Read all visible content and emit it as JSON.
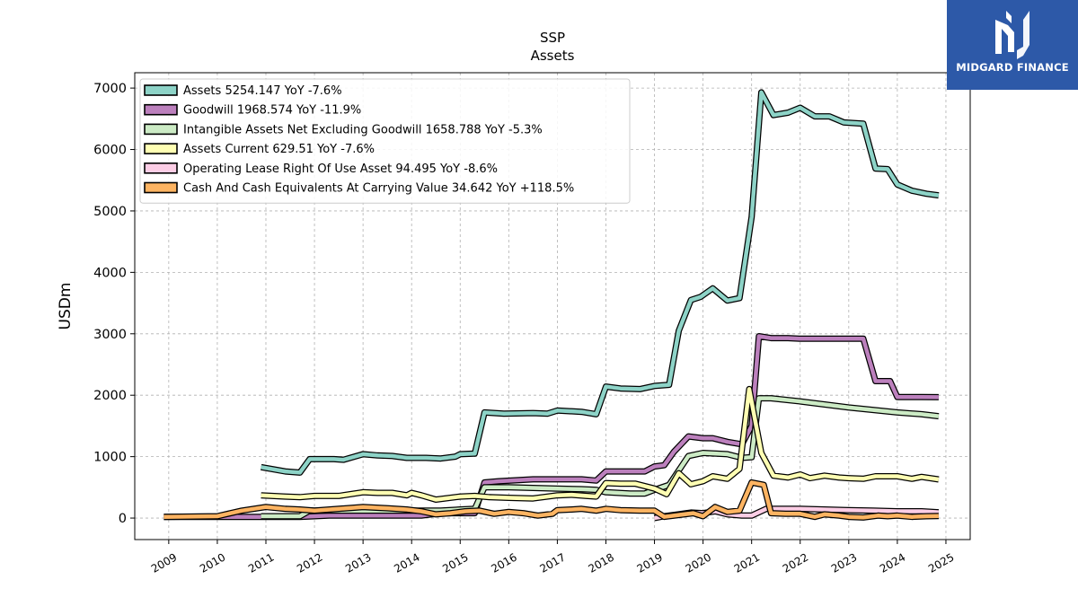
{
  "brand": {
    "name": "MIDGARD FINANCE",
    "logo_icon": "midgard-m-icon",
    "bg_color": "#2d59a8"
  },
  "chart_data": {
    "type": "line",
    "title": "SSP",
    "subtitle": "Assets",
    "xlabel": "",
    "ylabel": "USDm",
    "xlim": [
      2008.3,
      2025.5
    ],
    "ylim": [
      -350,
      7250
    ],
    "x_ticks": [
      "2009",
      "2010",
      "2011",
      "2012",
      "2013",
      "2014",
      "2015",
      "2016",
      "2017",
      "2018",
      "2019",
      "2020",
      "2021",
      "2022",
      "2023",
      "2024",
      "2025"
    ],
    "y_ticks": [
      0,
      1000,
      2000,
      3000,
      4000,
      5000,
      6000,
      7000
    ],
    "grid": true,
    "legend_position": "top-left",
    "series": [
      {
        "name": "Assets",
        "legend": "Assets  5254.147 YoY -7.6%",
        "color": "#8dd3c7",
        "points": [
          [
            2010.9,
            830
          ],
          [
            2011.4,
            760
          ],
          [
            2011.7,
            740
          ],
          [
            2011.9,
            960
          ],
          [
            2012.4,
            960
          ],
          [
            2012.6,
            950
          ],
          [
            2013,
            1040
          ],
          [
            2013.3,
            1020
          ],
          [
            2013.6,
            1010
          ],
          [
            2013.9,
            980
          ],
          [
            2014.3,
            980
          ],
          [
            2014.6,
            970
          ],
          [
            2014.9,
            1000
          ],
          [
            2015,
            1040
          ],
          [
            2015.3,
            1050
          ],
          [
            2015.5,
            1720
          ],
          [
            2015.9,
            1700
          ],
          [
            2016.5,
            1710
          ],
          [
            2016.8,
            1700
          ],
          [
            2017,
            1750
          ],
          [
            2017.5,
            1730
          ],
          [
            2017.8,
            1690
          ],
          [
            2018,
            2140
          ],
          [
            2018.3,
            2110
          ],
          [
            2018.7,
            2100
          ],
          [
            2019,
            2150
          ],
          [
            2019.3,
            2170
          ],
          [
            2019.5,
            3050
          ],
          [
            2019.75,
            3550
          ],
          [
            2019.95,
            3600
          ],
          [
            2020.2,
            3740
          ],
          [
            2020.5,
            3540
          ],
          [
            2020.75,
            3580
          ],
          [
            2021,
            4900
          ],
          [
            2021.2,
            6930
          ],
          [
            2021.45,
            6560
          ],
          [
            2021.75,
            6600
          ],
          [
            2022,
            6680
          ],
          [
            2022.3,
            6540
          ],
          [
            2022.6,
            6540
          ],
          [
            2022.9,
            6440
          ],
          [
            2023.3,
            6420
          ],
          [
            2023.55,
            5690
          ],
          [
            2023.8,
            5680
          ],
          [
            2024,
            5430
          ],
          [
            2024.3,
            5330
          ],
          [
            2024.6,
            5280
          ],
          [
            2024.85,
            5254
          ]
        ]
      },
      {
        "name": "Goodwill",
        "legend": "Goodwill  1968.574 YoY -11.9%",
        "color": "#bc80bd",
        "points": [
          [
            2008.9,
            20
          ],
          [
            2010,
            20
          ],
          [
            2011.7,
            20
          ],
          [
            2012.3,
            40
          ],
          [
            2013.5,
            40
          ],
          [
            2014.2,
            40
          ],
          [
            2014.6,
            80
          ],
          [
            2015,
            80
          ],
          [
            2015.3,
            80
          ],
          [
            2015.5,
            580
          ],
          [
            2015.8,
            600
          ],
          [
            2016.5,
            630
          ],
          [
            2017.5,
            630
          ],
          [
            2017.8,
            610
          ],
          [
            2018,
            760
          ],
          [
            2018.5,
            760
          ],
          [
            2018.8,
            760
          ],
          [
            2019,
            840
          ],
          [
            2019.2,
            860
          ],
          [
            2019.4,
            1080
          ],
          [
            2019.7,
            1330
          ],
          [
            2020,
            1300
          ],
          [
            2020.2,
            1300
          ],
          [
            2020.5,
            1240
          ],
          [
            2020.8,
            1200
          ],
          [
            2021,
            1500
          ],
          [
            2021.15,
            2960
          ],
          [
            2021.4,
            2930
          ],
          [
            2021.75,
            2930
          ],
          [
            2022,
            2920
          ],
          [
            2022.5,
            2920
          ],
          [
            2023,
            2920
          ],
          [
            2023.3,
            2920
          ],
          [
            2023.55,
            2230
          ],
          [
            2023.85,
            2230
          ],
          [
            2024,
            1970
          ],
          [
            2024.5,
            1970
          ],
          [
            2024.85,
            1968.574
          ]
        ]
      },
      {
        "name": "Intangible Assets Net Excluding Goodwill",
        "legend": "Intangible Assets Net Excluding Goodwill  1658.788 YoY -5.3%",
        "color": "#ccebc5",
        "points": [
          [
            2010.9,
            30
          ],
          [
            2011.4,
            30
          ],
          [
            2011.7,
            30
          ],
          [
            2011.9,
            120
          ],
          [
            2013,
            120
          ],
          [
            2014,
            120
          ],
          [
            2014.6,
            120
          ],
          [
            2015,
            140
          ],
          [
            2015.3,
            150
          ],
          [
            2015.5,
            500
          ],
          [
            2016,
            500
          ],
          [
            2016.5,
            490
          ],
          [
            2017,
            480
          ],
          [
            2017.5,
            470
          ],
          [
            2017.8,
            460
          ],
          [
            2018,
            420
          ],
          [
            2018.5,
            400
          ],
          [
            2018.8,
            400
          ],
          [
            2019,
            460
          ],
          [
            2019.3,
            540
          ],
          [
            2019.7,
            1010
          ],
          [
            2020,
            1060
          ],
          [
            2020.5,
            1040
          ],
          [
            2020.8,
            980
          ],
          [
            2021,
            990
          ],
          [
            2021.15,
            1950
          ],
          [
            2021.4,
            1950
          ],
          [
            2022,
            1900
          ],
          [
            2022.5,
            1850
          ],
          [
            2023,
            1800
          ],
          [
            2023.5,
            1760
          ],
          [
            2024,
            1720
          ],
          [
            2024.5,
            1690
          ],
          [
            2024.85,
            1658.788
          ]
        ]
      },
      {
        "name": "Assets Current",
        "legend": "Assets Current  629.51 YoY -7.6%",
        "color": "#ffffb3",
        "points": [
          [
            2010.9,
            370
          ],
          [
            2011.4,
            350
          ],
          [
            2011.7,
            340
          ],
          [
            2012,
            360
          ],
          [
            2012.5,
            360
          ],
          [
            2013,
            420
          ],
          [
            2013.3,
            410
          ],
          [
            2013.6,
            410
          ],
          [
            2013.9,
            370
          ],
          [
            2014,
            410
          ],
          [
            2014.2,
            370
          ],
          [
            2014.5,
            300
          ],
          [
            2015,
            350
          ],
          [
            2015.3,
            360
          ],
          [
            2015.6,
            340
          ],
          [
            2016,
            330
          ],
          [
            2016.5,
            320
          ],
          [
            2017,
            370
          ],
          [
            2017.3,
            380
          ],
          [
            2017.6,
            360
          ],
          [
            2017.8,
            350
          ],
          [
            2018,
            570
          ],
          [
            2018.3,
            560
          ],
          [
            2018.6,
            560
          ],
          [
            2019,
            480
          ],
          [
            2019.25,
            390
          ],
          [
            2019.5,
            730
          ],
          [
            2019.75,
            550
          ],
          [
            2020,
            600
          ],
          [
            2020.2,
            680
          ],
          [
            2020.5,
            640
          ],
          [
            2020.75,
            800
          ],
          [
            2020.95,
            2100
          ],
          [
            2021.2,
            1060
          ],
          [
            2021.45,
            690
          ],
          [
            2021.75,
            660
          ],
          [
            2022,
            710
          ],
          [
            2022.2,
            650
          ],
          [
            2022.5,
            690
          ],
          [
            2022.8,
            660
          ],
          [
            2023,
            650
          ],
          [
            2023.3,
            640
          ],
          [
            2023.55,
            680
          ],
          [
            2024,
            680
          ],
          [
            2024.3,
            640
          ],
          [
            2024.5,
            670
          ],
          [
            2024.85,
            629.51
          ]
        ]
      },
      {
        "name": "Operating Lease Right Of Use Asset",
        "legend": "Operating Lease Right Of Use Asset  94.495 YoY -8.6%",
        "color": "#fccde5",
        "points": [
          [
            2019,
            0
          ],
          [
            2019.2,
            30
          ],
          [
            2019.5,
            60
          ],
          [
            2019.75,
            90
          ],
          [
            2020,
            80
          ],
          [
            2020.25,
            110
          ],
          [
            2020.5,
            60
          ],
          [
            2020.8,
            40
          ],
          [
            2021,
            40
          ],
          [
            2021.3,
            150
          ],
          [
            2021.6,
            150
          ],
          [
            2022,
            150
          ],
          [
            2022.5,
            140
          ],
          [
            2023,
            130
          ],
          [
            2023.5,
            120
          ],
          [
            2024,
            110
          ],
          [
            2024.5,
            110
          ],
          [
            2024.85,
            94.495
          ]
        ]
      },
      {
        "name": "Cash And Cash Equivalents At Carrying Value",
        "legend": "Cash And Cash Equivalents At Carrying Value  34.642 YoY +118.5%",
        "color": "#fdb462",
        "points": [
          [
            2008.9,
            20
          ],
          [
            2010,
            30
          ],
          [
            2010.5,
            120
          ],
          [
            2011,
            180
          ],
          [
            2011.4,
            150
          ],
          [
            2011.7,
            140
          ],
          [
            2012,
            120
          ],
          [
            2012.5,
            150
          ],
          [
            2013,
            180
          ],
          [
            2013.5,
            160
          ],
          [
            2013.9,
            140
          ],
          [
            2014.2,
            110
          ],
          [
            2014.5,
            60
          ],
          [
            2014.8,
            80
          ],
          [
            2015.1,
            110
          ],
          [
            2015.4,
            120
          ],
          [
            2015.7,
            70
          ],
          [
            2016,
            100
          ],
          [
            2016.3,
            80
          ],
          [
            2016.6,
            40
          ],
          [
            2016.9,
            70
          ],
          [
            2017,
            130
          ],
          [
            2017.3,
            140
          ],
          [
            2017.5,
            150
          ],
          [
            2017.8,
            120
          ],
          [
            2018,
            150
          ],
          [
            2018.3,
            130
          ],
          [
            2018.7,
            120
          ],
          [
            2019,
            120
          ],
          [
            2019.2,
            20
          ],
          [
            2019.5,
            50
          ],
          [
            2019.8,
            80
          ],
          [
            2020,
            30
          ],
          [
            2020.25,
            180
          ],
          [
            2020.5,
            100
          ],
          [
            2020.75,
            120
          ],
          [
            2021,
            580
          ],
          [
            2021.25,
            540
          ],
          [
            2021.4,
            80
          ],
          [
            2021.7,
            70
          ],
          [
            2022,
            70
          ],
          [
            2022.3,
            20
          ],
          [
            2022.5,
            60
          ],
          [
            2022.8,
            40
          ],
          [
            2023,
            20
          ],
          [
            2023.3,
            10
          ],
          [
            2023.6,
            40
          ],
          [
            2023.8,
            30
          ],
          [
            2024,
            40
          ],
          [
            2024.3,
            20
          ],
          [
            2024.6,
            30
          ],
          [
            2024.85,
            34.642
          ]
        ]
      }
    ]
  }
}
